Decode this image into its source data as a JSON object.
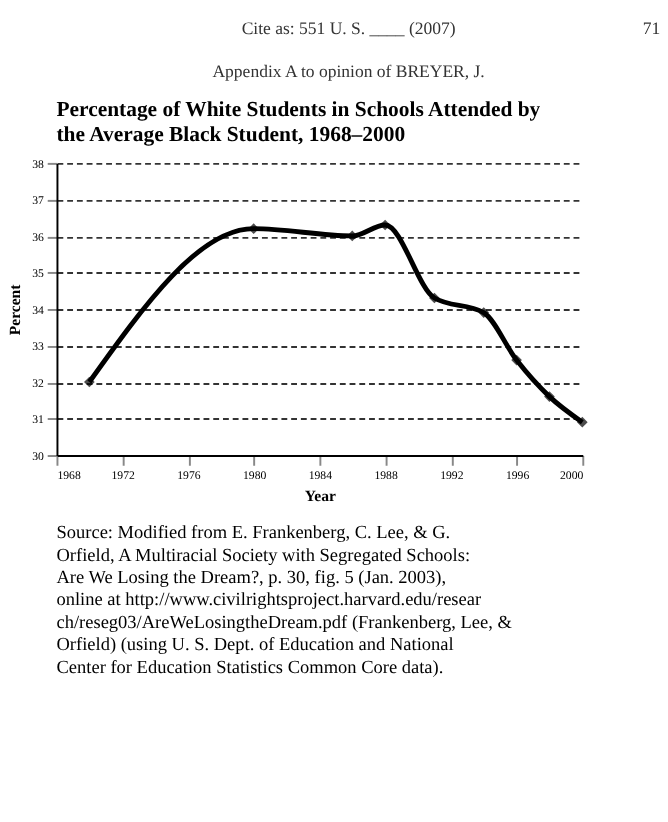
{
  "chart_data": {
    "type": "line",
    "title": "Percentage of White Students in Schools Attended by the Average Black Student, 1968–2000",
    "annotations": [
      "Cite as: 551 U. S. ____ (2007)",
      "71",
      "Appendix A to opinion of BREYER, J.",
      "Source: Modified from E. Frankenberg, C. Lee, & G. Orfield, A Multiracial Society with Segregated Schools: Are We Losing the Dream?, p. 30, fig. 5 (Jan. 2003), online at http://www.civilrightsproject.harvard.edu/research/reseg03/AreWeLosingtheDream.pdf (Frankenberg, Lee, & Orfield) (using U. S. Dept. of Education and National Center for Education Statistics Common Core data)."
    ],
    "xlabel": "Year",
    "ylabel": "Percent",
    "x": [
      1970,
      1980,
      1986,
      1988,
      1991,
      1994,
      1996,
      1998,
      2000
    ],
    "series": [
      {
        "color": "#000000",
        "values": [
          32.0,
          36.2,
          36.0,
          36.3,
          34.3,
          33.9,
          32.6,
          31.6,
          30.9
        ]
      }
    ],
    "xlim": [
      1968,
      2000
    ],
    "xticks": [
      1968,
      1972,
      1976,
      1980,
      1984,
      1988,
      1992,
      1996,
      2000
    ],
    "ylim": [
      30,
      38
    ],
    "yticks": [
      30,
      31,
      32,
      33,
      34,
      35,
      36,
      37,
      38
    ],
    "grid": "y",
    "marker": "diamond",
    "line_style": "solid"
  }
}
